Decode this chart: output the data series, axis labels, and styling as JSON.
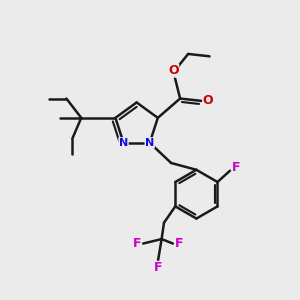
{
  "bg_color": "#ebebeb",
  "bond_color": "#1a1a1a",
  "bond_width": 1.8,
  "atom_colors": {
    "N": "#1010dd",
    "O": "#cc0000",
    "F": "#cc00cc"
  },
  "figsize": [
    3.0,
    3.0
  ],
  "dpi": 100
}
